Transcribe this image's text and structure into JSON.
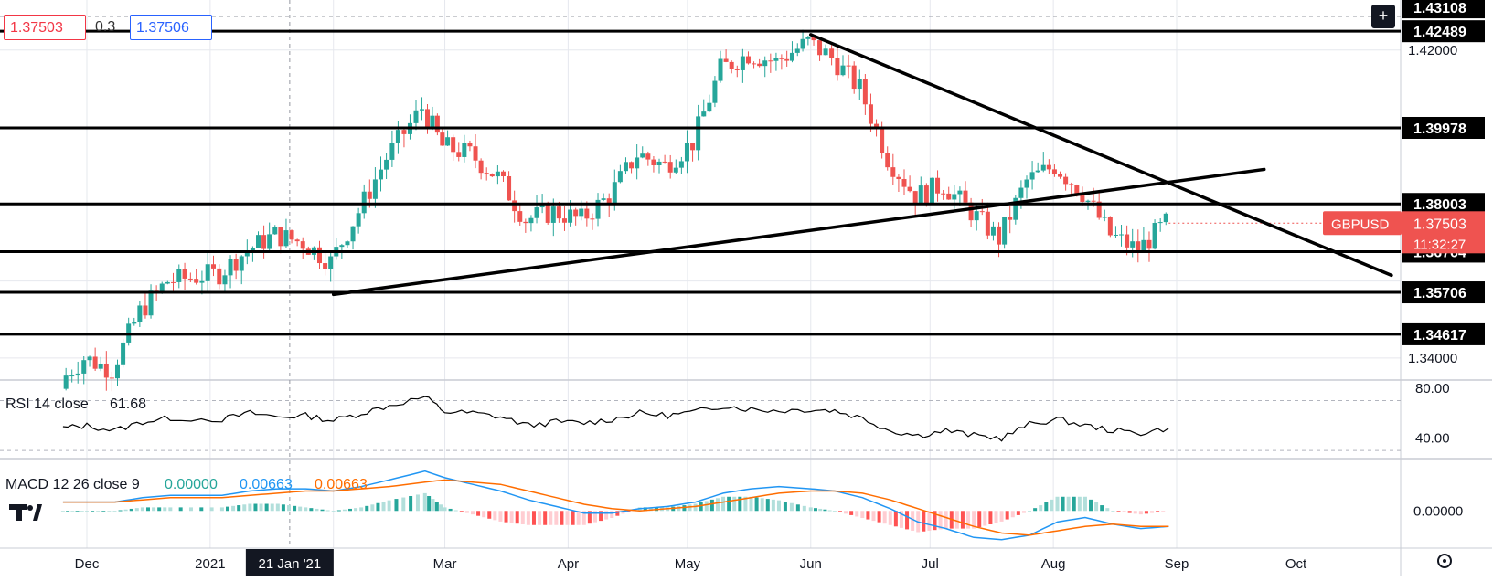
{
  "symbol": "GBPUSD",
  "quote": {
    "bid": "1.37503",
    "spread": "0.3",
    "ask": "1.37506",
    "last_price": "1.37503",
    "countdown": "11:32:27"
  },
  "colors": {
    "up": "#26a69a",
    "down": "#ef5350",
    "level_line": "#000000",
    "rsi": "#000000",
    "macd": "#2196f3",
    "signal": "#ff6d00",
    "hist_up_strong": "#26a69a",
    "hist_up_weak": "#b2dfdb",
    "hist_down_strong": "#ff5252",
    "hist_down_weak": "#ffcdd2"
  },
  "levels": [
    "1.43108",
    "1.42489",
    "1.39978",
    "1.38003",
    "1.36764",
    "1.35706",
    "1.34617"
  ],
  "price_ticks": [
    "1.42000",
    "1.34000"
  ],
  "rsi": {
    "label": "RSI 14 close",
    "value": "61.68",
    "ticks": [
      "80.00",
      "40.00"
    ]
  },
  "macd": {
    "label": "MACD 12 26 close 9",
    "hist": "0.00000",
    "macd": "0.00663",
    "signal": "0.00663",
    "ticks": [
      "0.00000"
    ]
  },
  "time_axis": {
    "labels": [
      "Dec",
      "2021",
      "Mar",
      "Apr",
      "May",
      "Jun",
      "Jul",
      "Aug",
      "Sep",
      "Oct"
    ],
    "crosshair": "21 Jan '21"
  },
  "chart_data": {
    "type": "candlestick",
    "title": "GBPUSD",
    "interval": "1D",
    "ylim": [
      1.335,
      1.433
    ],
    "x": [
      "2020-11-25",
      "2020-12-01",
      "2020-12-08",
      "2020-12-15",
      "2020-12-22",
      "2021-01-04",
      "2021-01-11",
      "2021-01-18",
      "2021-01-25",
      "2021-02-01",
      "2021-02-08",
      "2021-02-15",
      "2021-02-24",
      "2021-03-01",
      "2021-03-08",
      "2021-03-15",
      "2021-03-22",
      "2021-03-29",
      "2021-04-05",
      "2021-04-12",
      "2021-04-19",
      "2021-04-26",
      "2021-05-03",
      "2021-05-10",
      "2021-05-17",
      "2021-05-24",
      "2021-06-01",
      "2021-06-07",
      "2021-06-14",
      "2021-06-21",
      "2021-06-28",
      "2021-07-05",
      "2021-07-12",
      "2021-07-19",
      "2021-07-26",
      "2021-08-02",
      "2021-08-09",
      "2021-08-16",
      "2021-08-23",
      "2021-08-30"
    ],
    "close": [
      1.334,
      1.34,
      1.337,
      1.352,
      1.36,
      1.362,
      1.368,
      1.372,
      1.37,
      1.365,
      1.378,
      1.392,
      1.405,
      1.395,
      1.393,
      1.387,
      1.376,
      1.378,
      1.376,
      1.382,
      1.393,
      1.39,
      1.396,
      1.415,
      1.419,
      1.417,
      1.422,
      1.418,
      1.41,
      1.392,
      1.382,
      1.385,
      1.378,
      1.371,
      1.386,
      1.39,
      1.383,
      1.372,
      1.368,
      1.375
    ],
    "rsi": [
      48,
      50,
      46,
      53,
      56,
      55,
      60,
      57,
      58,
      54,
      60,
      66,
      73,
      61,
      60,
      57,
      50,
      53,
      52,
      55,
      60,
      58,
      61,
      66,
      63,
      62,
      63,
      62,
      56,
      46,
      42,
      46,
      42,
      40,
      51,
      55,
      50,
      46,
      44,
      48
    ],
    "macd": [
      0.004,
      0.004,
      0.004,
      0.006,
      0.007,
      0.007,
      0.009,
      0.01,
      0.01,
      0.009,
      0.011,
      0.014,
      0.018,
      0.015,
      0.012,
      0.009,
      0.005,
      0.002,
      -0.001,
      -0.001,
      0.001,
      0.002,
      0.004,
      0.008,
      0.01,
      0.011,
      0.01,
      0.009,
      0.006,
      0.001,
      -0.005,
      -0.008,
      -0.012,
      -0.013,
      -0.011,
      -0.005,
      -0.003,
      -0.006,
      -0.008,
      -0.007
    ],
    "signal": [
      0.004,
      0.004,
      0.004,
      0.005,
      0.006,
      0.006,
      0.007,
      0.008,
      0.009,
      0.009,
      0.01,
      0.011,
      0.013,
      0.014,
      0.013,
      0.012,
      0.009,
      0.006,
      0.003,
      0.001,
      0.0,
      0.001,
      0.002,
      0.004,
      0.006,
      0.008,
      0.009,
      0.009,
      0.008,
      0.005,
      0.001,
      -0.003,
      -0.007,
      -0.01,
      -0.011,
      -0.009,
      -0.007,
      -0.006,
      -0.007,
      -0.007
    ],
    "trendlines": [
      {
        "from": [
          "2021-02-01",
          1.3565
        ],
        "to": [
          "2021-09-23",
          1.389
        ]
      },
      {
        "from": [
          "2021-06-01",
          1.424
        ],
        "to": [
          "2021-10-25",
          1.3615
        ]
      }
    ]
  }
}
